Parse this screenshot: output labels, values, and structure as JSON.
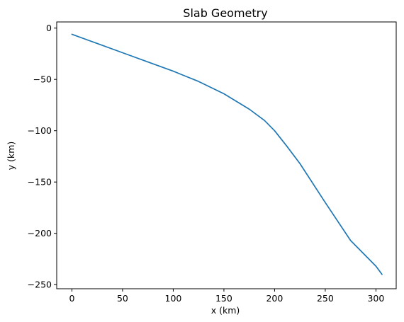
{
  "chart_data": {
    "type": "line",
    "title": "Slab Geometry",
    "xlabel": "x (km)",
    "ylabel": "y (km)",
    "xlim": [
      -15,
      320
    ],
    "ylim": [
      -254,
      6
    ],
    "xticks": [
      0,
      50,
      100,
      150,
      200,
      250,
      300
    ],
    "yticks": [
      0,
      -50,
      -100,
      -150,
      -200,
      -250
    ],
    "xtick_labels": [
      "0",
      "50",
      "100",
      "150",
      "200",
      "250",
      "300"
    ],
    "ytick_labels": [
      "0",
      "−50",
      "−100",
      "−150",
      "−200",
      "−250"
    ],
    "grid": false,
    "series": [
      {
        "color": "#1f77b4",
        "x": [
          0,
          25,
          50,
          75,
          100,
          125,
          150,
          175,
          190,
          200,
          212,
          225,
          250,
          275,
          300,
          306
        ],
        "y": [
          -6,
          -15,
          -24,
          -33,
          -42,
          -52,
          -64,
          -79,
          -90,
          -100,
          -115,
          -132,
          -170,
          -207,
          -232,
          -240
        ]
      }
    ]
  }
}
